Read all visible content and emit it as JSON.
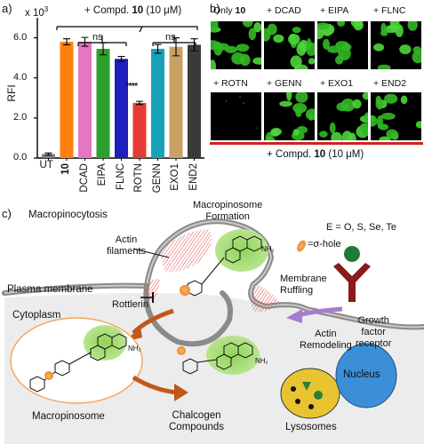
{
  "panel_a": {
    "panel_label": "a)",
    "multiplier": "x 10",
    "multiplier_exp": "3",
    "treatment_label_prefix": "+ Compd. ",
    "treatment_label_bold": "10",
    "treatment_label_suffix": " (10 μM)",
    "ns_left": "ns",
    "ns_right": "ns",
    "stars": "****",
    "ylabel": "RFI",
    "ticks": [
      "0.0",
      "2.0",
      "4.0",
      "6.0"
    ],
    "colors": {
      "UT": "#7f7f7f",
      "10": "#ff7f0e",
      "DCAD": "#e377c2",
      "EIPA": "#2ca02c",
      "FLNC": "#1f1fbf",
      "ROTN": "#e53935",
      "GENN": "#17a2b8",
      "EXO1": "#c8a064",
      "END2": "#3a3a3a"
    }
  },
  "chart_data": {
    "type": "bar",
    "categories": [
      "UT",
      "10",
      "DCAD",
      "EIPA",
      "FLNC",
      "ROTN",
      "GENN",
      "EXO1",
      "END2"
    ],
    "values": [
      0.2,
      5.8,
      5.8,
      5.45,
      4.95,
      2.75,
      5.45,
      5.55,
      5.65
    ],
    "errors": [
      0.05,
      0.15,
      0.22,
      0.3,
      0.12,
      0.08,
      0.22,
      0.45,
      0.3
    ],
    "ylabel": "RFI",
    "ylim": [
      0,
      7
    ],
    "multiplier": "x 10^3",
    "annotations": [
      "ns",
      "ns",
      "****"
    ]
  },
  "panel_b": {
    "panel_label": "b)",
    "row1": [
      {
        "prefix": "Only ",
        "bold": "10"
      },
      {
        "prefix": "+ DCAD",
        "bold": ""
      },
      {
        "prefix": "+ EIPA",
        "bold": ""
      },
      {
        "prefix": "+ FLNC",
        "bold": ""
      }
    ],
    "row2": [
      {
        "prefix": "+ ROTN",
        "bold": ""
      },
      {
        "prefix": "+ GENN",
        "bold": ""
      },
      {
        "prefix": "+ EXO1",
        "bold": ""
      },
      {
        "prefix": "+ END2",
        "bold": ""
      }
    ],
    "bottom_prefix": "+ Compd. ",
    "bottom_bold": "10",
    "bottom_suffix": " (10 μM)"
  },
  "panel_c": {
    "panel_label": "c)",
    "title": "Macropinocytosis",
    "formation_line1": "Macropinosome",
    "formation_line2": "Formation",
    "legend_line1": "E = O, S, Se, Te",
    "legend_line2": "=σ-hole",
    "actin_line1": "Actin",
    "actin_line2": "filaments",
    "membrane_ruffling_line1": "Membrane",
    "membrane_ruffling_line2": "Ruffling",
    "plasma_membrane": "Plasma membrane",
    "rottlerin": "Rottlerin",
    "cytoplasm": "Cytoplasm",
    "actin_remodeling_line1": "Actin",
    "actin_remodeling_line2": "Remodeling",
    "growth_line1": "Growth",
    "growth_line2": "factor",
    "growth_line3": "receptor",
    "macropinosome": "Macropinosome",
    "chalcogen_line1": "Chalcogen",
    "chalcogen_line2": "Compounds",
    "nucleus": "Nucleus",
    "lysosomes": "Lysosomes",
    "nh2": "NH₂",
    "atom_E": "E",
    "atom_N": "N",
    "atom_O": "O",
    "colors": {
      "title": "#1a1adf",
      "cytoplasm_fill": "#ececec",
      "membrane": "#8a8a8a",
      "actin": "#e05050",
      "green_glow": "#9fd86a",
      "sigma_hole": "#f59a3c",
      "macropinosome_outline": "#f2a25c",
      "arrow_brown": "#c0581c",
      "arrow_purple": "#a77bd0",
      "receptor": "#8b1a1a",
      "ligand": "#1f7a3a",
      "nucleus": "#3a8fd8",
      "lysosome": "#e8c530"
    }
  }
}
